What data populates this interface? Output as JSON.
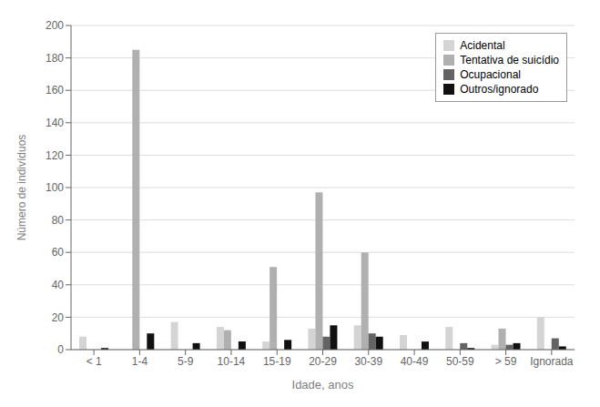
{
  "chart_data": {
    "type": "bar",
    "categories": [
      "< 1",
      "1-4",
      "5-9",
      "10-14",
      "15-19",
      "20-29",
      "30-39",
      "40-49",
      "50-59",
      "> 59",
      "Ignorada"
    ],
    "series": [
      {
        "name": "Acidental",
        "color": "#d4d4d4",
        "values": [
          8,
          0,
          17,
          14,
          5,
          13,
          15,
          9,
          14,
          3,
          20
        ]
      },
      {
        "name": "Tentativa de suicídio",
        "color": "#b0b0b0",
        "values": [
          0,
          185,
          0,
          12,
          51,
          97,
          60,
          0,
          0,
          13,
          0
        ]
      },
      {
        "name": "Ocupacional",
        "color": "#636363",
        "values": [
          0,
          0,
          0,
          0,
          0,
          8,
          10,
          0,
          4,
          3,
          7
        ]
      },
      {
        "name": "Outros/ignorado",
        "color": "#111111",
        "values": [
          1,
          10,
          4,
          5,
          6,
          15,
          8,
          5,
          1,
          4,
          2
        ]
      }
    ],
    "xlabel": "Idade, anos",
    "ylabel": "Número de indivíduos",
    "ylim": [
      0,
      200
    ],
    "yticks": [
      0,
      20,
      40,
      60,
      80,
      100,
      120,
      140,
      160,
      180,
      200
    ],
    "grid": true,
    "legend": "upper right"
  }
}
